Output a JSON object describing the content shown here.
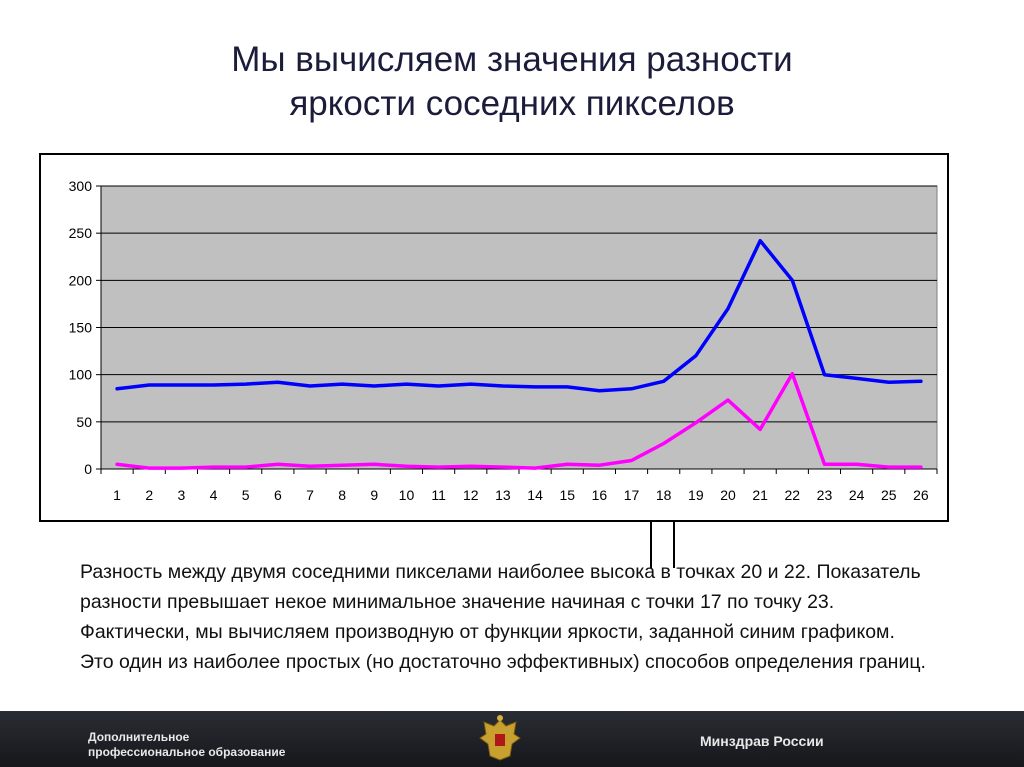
{
  "slide": {
    "title_line1": "Мы вычисляем значения разности",
    "title_line2": "яркости соседних пикселов",
    "body": "Разность между двумя соседними пикселами наиболее высока в точках 20 и 22. Показатель разности превышает некое минимальное значение начиная с точки 17 по точку 23. Фактически, мы вычисляем производную от функции яркости, заданной синим графиком. Это один из наиболее простых (но достаточно эффективных) способов определения границ."
  },
  "footer": {
    "left_line1": "Дополнительное",
    "left_line2": "профессиональное образование",
    "right": "Минздрав России",
    "emblem_icon": "double-headed-eagle-emblem"
  },
  "chart_data": {
    "type": "line",
    "x": [
      1,
      2,
      3,
      4,
      5,
      6,
      7,
      8,
      9,
      10,
      11,
      12,
      13,
      14,
      15,
      16,
      17,
      18,
      19,
      20,
      21,
      22,
      23,
      24,
      25,
      26
    ],
    "series": [
      {
        "color": "#0000ff",
        "values": [
          85,
          89,
          89,
          89,
          90,
          92,
          88,
          90,
          88,
          90,
          88,
          90,
          88,
          87,
          87,
          83,
          85,
          93,
          120,
          170,
          242,
          200,
          100,
          96,
          92,
          93
        ]
      },
      {
        "color": "#ff00ff",
        "values": [
          5,
          1,
          1,
          2,
          2,
          5,
          3,
          4,
          5,
          3,
          2,
          3,
          2,
          1,
          5,
          4,
          9,
          27,
          49,
          73,
          42,
          101,
          5,
          5,
          2,
          2
        ]
      }
    ],
    "ylim": [
      0,
      300
    ],
    "yticks": [
      0,
      50,
      100,
      150,
      200,
      250,
      300
    ],
    "grid": true,
    "plot_background": "#c0c0c0"
  }
}
